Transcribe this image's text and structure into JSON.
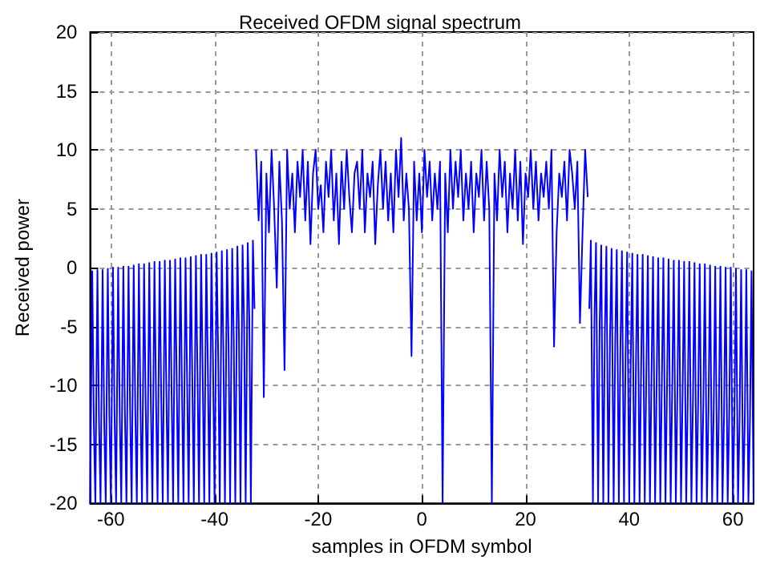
{
  "chart_data": {
    "type": "line",
    "title": "Received OFDM signal spectrum",
    "xlabel": "samples in OFDM symbol",
    "ylabel": "Received power",
    "xlim": [
      -64,
      64
    ],
    "xticks": [
      -60,
      -40,
      -20,
      0,
      20,
      40,
      60
    ],
    "ylim": [
      -20,
      20
    ],
    "yticks": [
      -20,
      -15,
      -10,
      -5,
      0,
      5,
      10,
      15,
      20
    ],
    "grid": true,
    "marker": "none",
    "line_style": "solid",
    "series": [
      {
        "color": "#0000ff",
        "x": [
          -64,
          -63.6,
          -63.3,
          -63,
          -62.6,
          -62.3,
          -62,
          -61.6,
          -61.3,
          -61,
          -60.6,
          -60.3,
          -60,
          -59.6,
          -59.3,
          -59,
          -58.6,
          -58.3,
          -58,
          -57.6,
          -57.3,
          -57,
          -56.6,
          -56.3,
          -56,
          -55.6,
          -55.3,
          -55,
          -54.6,
          -54.3,
          -54,
          -53.6,
          -53.3,
          -53,
          -52.6,
          -52.3,
          -52,
          -51.6,
          -51.3,
          -51,
          -50.6,
          -50.3,
          -50,
          -49.6,
          -49.3,
          -49,
          -48.6,
          -48.3,
          -48,
          -47.6,
          -47.3,
          -47,
          -46.6,
          -46.3,
          -46,
          -45.6,
          -45.3,
          -45,
          -44.6,
          -44.3,
          -44,
          -43.6,
          -43.3,
          -43,
          -42.6,
          -42.3,
          -42,
          -41.6,
          -41.3,
          -41,
          -40.6,
          -40.3,
          -40,
          -39.6,
          -39.3,
          -39,
          -38.6,
          -38.3,
          -38,
          -37.6,
          -37.3,
          -37,
          -36.6,
          -36.3,
          -36,
          -35.6,
          -35.3,
          -35,
          -34.6,
          -34.3,
          -34,
          -33.6,
          -33.3,
          -33,
          -32.6,
          -32.3
        ],
        "values": [
          -20,
          -0.3,
          -13,
          -20,
          -0.2,
          -12.9,
          -20,
          -0.2,
          -12.8,
          -20,
          -0.1,
          -12.6,
          -20,
          0,
          -12.5,
          -20,
          0,
          -12.4,
          -20,
          0.1,
          -12.3,
          -20,
          0.1,
          -12.1,
          -20,
          0.2,
          -12,
          -20,
          0.3,
          -11.8,
          -20,
          0.3,
          -11.5,
          -20,
          0.4,
          -11.3,
          -20,
          0.5,
          -11,
          -20,
          0.5,
          -10.8,
          -20,
          0.6,
          -10.5,
          -20,
          0.6,
          -10.3,
          -20,
          0.7,
          -10,
          -20,
          0.8,
          -9.8,
          -20,
          0.8,
          -9.5,
          -20,
          0.9,
          -9.3,
          -20,
          1,
          -9,
          -20,
          1.1,
          -8.6,
          -20,
          1.1,
          -8.3,
          -20,
          1.2,
          -7.9,
          -20,
          1.3,
          -7.5,
          -20,
          1.4,
          -7,
          -20,
          1.5,
          -6.5,
          -20,
          1.6,
          -6,
          -20,
          1.8,
          -5.5,
          -20,
          1.9,
          -4.8,
          -20,
          2.1,
          -4.2,
          -20,
          2.3,
          -3.5
        ]
      },
      {
        "color": "#0000ff",
        "x": [
          -32,
          -31.5,
          -31,
          -30.5,
          -30,
          -29.5,
          -29,
          -28.5,
          -28,
          -27.5,
          -27,
          -26.5,
          -26,
          -25.5,
          -25,
          -24.5,
          -24,
          -23.5,
          -23,
          -22.5,
          -22,
          -21.5,
          -21,
          -20.5,
          -20,
          -19.5,
          -19,
          -18.5,
          -18,
          -17.5,
          -17,
          -16.5,
          -16,
          -15.5,
          -15,
          -14.5,
          -14,
          -13.5,
          -13,
          -12.5,
          -12,
          -11.5,
          -11,
          -10.5,
          -10,
          -9.5,
          -9,
          -8.5,
          -8,
          -7.5,
          -7,
          -6.5,
          -6,
          -5.5,
          -5,
          -4.5,
          -4,
          -3.5,
          -3,
          -2.5,
          -2,
          -1.5,
          -1,
          -0.5,
          0,
          0.5,
          1,
          1.5,
          2,
          2.5,
          3,
          3.5,
          4,
          4.5,
          5,
          5.5,
          6,
          6.5,
          7,
          7.5,
          8,
          8.5,
          9,
          9.5,
          10,
          10.5,
          11,
          11.5,
          12,
          12.5,
          13,
          13.5,
          14,
          14.5,
          15,
          15.5,
          16,
          16.5,
          17,
          17.5,
          18,
          18.5,
          19,
          19.5,
          20,
          20.5,
          21,
          21.5,
          22,
          22.5,
          23,
          23.5,
          24,
          24.5,
          25,
          25.5,
          26,
          26.5,
          27,
          27.5,
          28,
          28.5,
          29,
          29.5,
          30,
          30.5,
          31,
          31.5,
          32
        ],
        "values": [
          10,
          4,
          9,
          -11,
          8,
          3,
          10,
          5,
          -1.7,
          9,
          4,
          -8.7,
          10,
          5,
          8,
          3,
          9,
          6,
          10,
          4,
          9,
          2,
          8,
          10,
          5,
          7,
          3,
          9,
          6,
          10,
          4,
          8,
          2,
          9,
          5,
          10,
          6,
          3,
          8,
          9,
          5,
          10,
          3,
          8,
          6,
          9,
          2,
          7,
          10,
          5,
          9,
          4,
          8,
          3,
          10,
          6,
          11,
          4,
          8,
          5,
          -7.5,
          9,
          4,
          8,
          3,
          10,
          6,
          9,
          4,
          8,
          5,
          9,
          -20,
          8,
          3,
          10,
          5,
          9,
          6,
          10,
          4,
          8,
          5,
          9,
          3,
          8,
          6,
          10,
          4,
          9,
          5,
          -20,
          8,
          4,
          10,
          6,
          9,
          3,
          8,
          5,
          10,
          4,
          9,
          2,
          8,
          6,
          10,
          5,
          9,
          4,
          8,
          6,
          9,
          5,
          10,
          -6.7,
          3,
          8,
          6,
          9,
          4,
          10,
          8,
          5,
          9,
          -4.7,
          3,
          10,
          6
        ]
      },
      {
        "color": "#0000ff",
        "x": [
          32.3,
          32.6,
          33,
          33.3,
          33.6,
          34,
          34.3,
          34.6,
          35,
          35.3,
          35.6,
          36,
          36.3,
          36.6,
          37,
          37.3,
          37.6,
          38,
          38.3,
          38.6,
          39,
          39.3,
          39.6,
          40,
          40.3,
          40.6,
          41,
          41.3,
          41.6,
          42,
          42.3,
          42.6,
          43,
          43.3,
          43.6,
          44,
          44.3,
          44.6,
          45,
          45.3,
          45.6,
          46,
          46.3,
          46.6,
          47,
          47.3,
          47.6,
          48,
          48.3,
          48.6,
          49,
          49.3,
          49.6,
          50,
          50.3,
          50.6,
          51,
          51.3,
          51.6,
          52,
          52.3,
          52.6,
          53,
          53.3,
          53.6,
          54,
          54.3,
          54.6,
          55,
          55.3,
          55.6,
          56,
          56.3,
          56.6,
          57,
          57.3,
          57.6,
          58,
          58.3,
          58.6,
          59,
          59.3,
          59.6,
          60,
          60.3,
          60.6,
          61,
          61.3,
          61.6,
          62,
          62.3,
          62.6,
          63,
          63.3,
          63.6,
          64
        ],
        "values": [
          -3.5,
          2.3,
          -20,
          -4.2,
          2.1,
          -20,
          -4.8,
          1.9,
          -20,
          -5.5,
          1.8,
          -20,
          -6,
          1.6,
          -20,
          -6.5,
          1.5,
          -20,
          -7,
          1.4,
          -20,
          -7.5,
          1.3,
          -20,
          -7.9,
          1.2,
          -20,
          -8.3,
          1.1,
          -20,
          -8.6,
          1.1,
          -20,
          -9,
          1,
          -20,
          -9.3,
          0.9,
          -20,
          -9.5,
          0.8,
          -20,
          -9.8,
          0.8,
          -20,
          -10,
          0.7,
          -20,
          -10.3,
          0.6,
          -20,
          -10.5,
          0.6,
          -20,
          -10.8,
          0.5,
          -20,
          -11,
          0.5,
          -20,
          -11.3,
          0.4,
          -20,
          -11.5,
          0.3,
          -20,
          -11.8,
          0.3,
          -20,
          -12,
          0.2,
          -20,
          -12.1,
          0.1,
          -20,
          -12.3,
          0.1,
          -20,
          -12.4,
          0,
          -20,
          -12.5,
          0,
          -20,
          -12.6,
          -0.1,
          -20,
          -12.8,
          -0.2,
          -20,
          -12.9,
          -0.2,
          -20,
          -13,
          -0.3,
          -20
        ]
      }
    ]
  }
}
